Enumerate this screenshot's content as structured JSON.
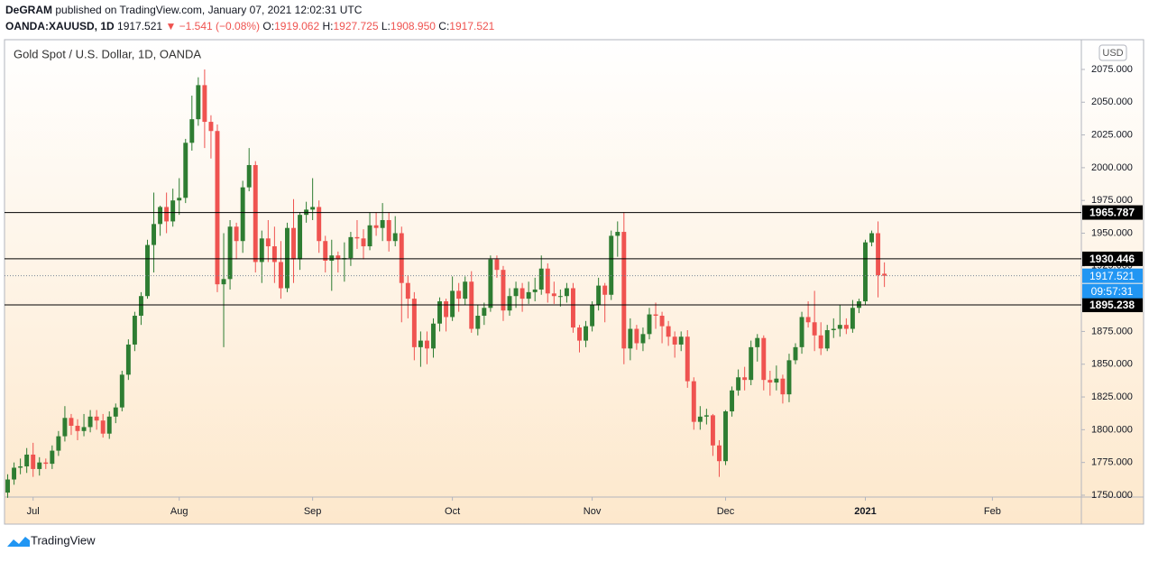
{
  "header": {
    "author": "DeGRAM",
    "published": "published on TradingView.com, January 07, 2021 12:02:31 UTC",
    "symbol": "OANDA:XAUUSD, 1D",
    "last": "1917.521",
    "change": "▼ −1.541 (−0.08%)",
    "open_label": "O:",
    "open": "1919.062",
    "high_label": "H:",
    "high": "1927.725",
    "low_label": "L:",
    "low": "1908.950",
    "close_label": "C:",
    "close": "1917.521"
  },
  "footer": {
    "brand": "TradingView"
  },
  "chart_data": {
    "type": "candlestick",
    "title": "Gold Spot / U.S. Dollar, 1D, OANDA",
    "currency": "USD",
    "up_color": "#2e7d32",
    "down_color": "#ef5350",
    "grid": false,
    "xlim": [
      -0.5,
      169
    ],
    "xticks": [
      {
        "value": 4,
        "label": "Jul"
      },
      {
        "value": 27,
        "label": "Aug"
      },
      {
        "value": 48,
        "label": "Sep"
      },
      {
        "value": 70,
        "label": "Oct"
      },
      {
        "value": 92,
        "label": "Nov"
      },
      {
        "value": 113,
        "label": "Dec"
      },
      {
        "value": 135,
        "label": "2021"
      },
      {
        "value": 155,
        "label": "Feb"
      }
    ],
    "ylim": [
      1748.6,
      2097.7
    ],
    "yticks": [
      {
        "value": 1750,
        "label": "1750.000"
      },
      {
        "value": 1775,
        "label": "1775.000"
      },
      {
        "value": 1800,
        "label": "1800.000"
      },
      {
        "value": 1825,
        "label": "1825.000"
      },
      {
        "value": 1850,
        "label": "1850.000"
      },
      {
        "value": 1875,
        "label": "1875.000"
      },
      {
        "value": 1900,
        "label": "1900.000"
      },
      {
        "value": 1925,
        "label": "1925.000"
      },
      {
        "value": 1950,
        "label": "1950.000"
      },
      {
        "value": 1975,
        "label": "1975.000"
      },
      {
        "value": 2000,
        "label": "2000.000"
      },
      {
        "value": 2025,
        "label": "2025.000"
      },
      {
        "value": 2050,
        "label": "2050.000"
      },
      {
        "value": 2075,
        "label": "2075.000"
      }
    ],
    "hlines": [
      1965.787,
      1930.446,
      1895.238
    ],
    "countdown": "09:57:31",
    "open": [
      1752,
      1762,
      1771,
      1772,
      1781,
      1770,
      1775,
      1774,
      1784,
      1795,
      1809,
      1803,
      1799,
      1802,
      1810,
      1807,
      1797,
      1810,
      1817,
      1842,
      1865,
      1887,
      1902,
      1941,
      1957,
      1970,
      1959,
      1975,
      1977,
      2019,
      2037,
      2063,
      2035,
      2028,
      1911,
      1915,
      1955,
      1944,
      1985,
      2002,
      1928,
      1946,
      1940,
      1928,
      1908,
      1954,
      1930,
      1964,
      1968,
      1970,
      1944,
      1929,
      1933,
      1930,
      1931,
      1947,
      1946,
      1940,
      1956,
      1954,
      1960,
      1944,
      1950,
      1912,
      1900,
      1863,
      1868,
      1862,
      1881,
      1898,
      1886,
      1906,
      1900,
      1913,
      1877,
      1887,
      1893,
      1930,
      1922,
      1891,
      1902,
      1908,
      1900,
      1905,
      1907,
      1923,
      1904,
      1902,
      1902,
      1908,
      1878,
      1868,
      1879,
      1895,
      1910,
      1903,
      1948,
      1951,
      1862,
      1877,
      1866,
      1873,
      1888,
      1887,
      1879,
      1871,
      1865,
      1871,
      1837,
      1806,
      1810,
      1811,
      1788,
      1776,
      1814,
      1830,
      1840,
      1838,
      1863,
      1870,
      1838,
      1836,
      1839,
      1827,
      1853,
      1863,
      1886,
      1882,
      1872,
      1862,
      1876,
      1877,
      1880,
      1877,
      1893,
      1898,
      1943,
      1950,
      1919.062
    ],
    "high": [
      1766,
      1775,
      1778,
      1786,
      1790,
      1779,
      1778,
      1788,
      1799,
      1818,
      1812,
      1808,
      1812,
      1815,
      1815,
      1812,
      1814,
      1820,
      1845,
      1869,
      1890,
      1905,
      1945,
      1981,
      1971,
      1981,
      1984,
      1992,
      2022,
      2055,
      2069,
      2075,
      2040,
      2033,
      1950,
      1960,
      1958,
      1990,
      2015,
      2005,
      1952,
      1960,
      1955,
      1944,
      1958,
      1976,
      1966,
      1974,
      1992,
      1975,
      1948,
      1945,
      1936,
      1943,
      1951,
      1960,
      1953,
      1966,
      1966,
      1973,
      1966,
      1963,
      1955,
      1918,
      1905,
      1875,
      1875,
      1885,
      1901,
      1900,
      1917,
      1912,
      1917,
      1921,
      1895,
      1897,
      1933,
      1933,
      1925,
      1908,
      1913,
      1912,
      1913,
      1916,
      1933,
      1927,
      1913,
      1907,
      1912,
      1912,
      1880,
      1883,
      1898,
      1916,
      1912,
      1952,
      1959,
      1966,
      1885,
      1880,
      1878,
      1893,
      1897,
      1890,
      1883,
      1875,
      1875,
      1876,
      1840,
      1818,
      1816,
      1812,
      1792,
      1815,
      1833,
      1846,
      1848,
      1868,
      1873,
      1872,
      1845,
      1849,
      1842,
      1858,
      1866,
      1890,
      1898,
      1906,
      1882,
      1880,
      1885,
      1895,
      1885,
      1899,
      1900,
      1945,
      1952,
      1959,
      1927.725
    ],
    "low": [
      1748,
      1758,
      1766,
      1767,
      1764,
      1765,
      1770,
      1770,
      1780,
      1791,
      1796,
      1792,
      1795,
      1798,
      1800,
      1794,
      1793,
      1805,
      1814,
      1838,
      1860,
      1880,
      1900,
      1920,
      1948,
      1950,
      1955,
      1964,
      1973,
      2013,
      2032,
      2015,
      2007,
      1905,
      1863,
      1907,
      1930,
      1935,
      1982,
      1920,
      1912,
      1928,
      1912,
      1900,
      1905,
      1912,
      1922,
      1958,
      1960,
      1935,
      1920,
      1906,
      1920,
      1913,
      1925,
      1938,
      1930,
      1937,
      1948,
      1944,
      1936,
      1940,
      1882,
      1885,
      1853,
      1848,
      1850,
      1855,
      1875,
      1875,
      1883,
      1890,
      1895,
      1874,
      1872,
      1880,
      1890,
      1916,
      1883,
      1887,
      1893,
      1890,
      1896,
      1898,
      1903,
      1897,
      1896,
      1894,
      1897,
      1874,
      1859,
      1863,
      1875,
      1891,
      1882,
      1899,
      1932,
      1850,
      1853,
      1861,
      1860,
      1869,
      1877,
      1866,
      1864,
      1855,
      1860,
      1832,
      1800,
      1800,
      1804,
      1780,
      1764,
      1773,
      1810,
      1826,
      1830,
      1834,
      1852,
      1830,
      1826,
      1830,
      1820,
      1821,
      1850,
      1858,
      1878,
      1860,
      1857,
      1860,
      1870,
      1871,
      1873,
      1874,
      1889,
      1895,
      1940,
      1901,
      1908.95
    ],
    "close": [
      1762,
      1771,
      1772,
      1781,
      1770,
      1775,
      1774,
      1784,
      1795,
      1809,
      1803,
      1799,
      1802,
      1810,
      1807,
      1797,
      1810,
      1817,
      1842,
      1865,
      1887,
      1902,
      1941,
      1957,
      1970,
      1959,
      1975,
      1977,
      2019,
      2037,
      2063,
      2035,
      2028,
      1911,
      1915,
      1955,
      1944,
      1985,
      2002,
      1928,
      1946,
      1940,
      1928,
      1908,
      1954,
      1930,
      1964,
      1968,
      1970,
      1944,
      1929,
      1933,
      1930,
      1931,
      1947,
      1946,
      1940,
      1956,
      1954,
      1960,
      1944,
      1950,
      1912,
      1900,
      1863,
      1868,
      1862,
      1881,
      1898,
      1886,
      1906,
      1900,
      1913,
      1877,
      1887,
      1893,
      1930,
      1922,
      1891,
      1902,
      1908,
      1900,
      1905,
      1907,
      1923,
      1904,
      1902,
      1902,
      1908,
      1878,
      1868,
      1879,
      1895,
      1910,
      1903,
      1948,
      1951,
      1862,
      1877,
      1866,
      1873,
      1888,
      1887,
      1879,
      1871,
      1865,
      1871,
      1837,
      1806,
      1810,
      1811,
      1788,
      1776,
      1814,
      1830,
      1840,
      1838,
      1863,
      1870,
      1838,
      1836,
      1839,
      1827,
      1853,
      1863,
      1886,
      1882,
      1872,
      1862,
      1876,
      1877,
      1880,
      1877,
      1893,
      1898,
      1943,
      1950,
      1918,
      1917.521
    ]
  }
}
